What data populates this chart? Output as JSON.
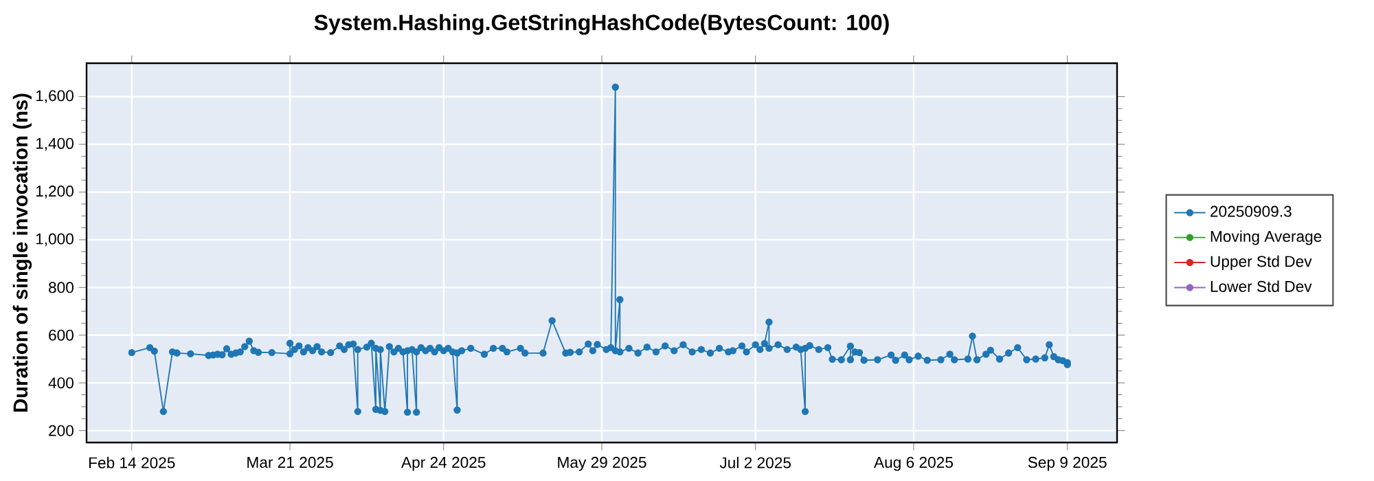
{
  "chart_data": {
    "type": "line",
    "title": "System.Hashing.GetStringHashCode(BytesCount: 100)",
    "ylabel": "Duration of single invocation (ns)",
    "xlim": [
      "2025-02-04",
      "2025-09-20"
    ],
    "xticks": [
      {
        "value": "2025-02-14",
        "label": "Feb 14 2025"
      },
      {
        "value": "2025-03-21",
        "label": "Mar 21 2025"
      },
      {
        "value": "2025-04-24",
        "label": "Apr 24 2025"
      },
      {
        "value": "2025-05-29",
        "label": "May 29 2025"
      },
      {
        "value": "2025-07-02",
        "label": "Jul 2 2025"
      },
      {
        "value": "2025-08-06",
        "label": "Aug 6 2025"
      },
      {
        "value": "2025-09-09",
        "label": "Sep 9 2025"
      }
    ],
    "ylim": [
      150,
      1740
    ],
    "yticks": [
      200,
      400,
      600,
      800,
      {
        "value": 1000,
        "label": "1,000"
      },
      {
        "value": 1200,
        "label": "1,200"
      },
      {
        "value": 1400,
        "label": "1,400"
      },
      {
        "value": 1600,
        "label": "1,600"
      }
    ],
    "grid": true,
    "legend": "right",
    "marker": "circle",
    "line_style": "solid",
    "series": [
      {
        "name": "20250909.3",
        "color": "#1f77b4",
        "x": [
          "2025-02-14",
          "2025-02-18",
          "2025-02-19",
          "2025-02-21",
          "2025-02-23",
          "2025-02-24",
          "2025-02-27",
          "2025-03-03",
          "2025-03-04",
          "2025-03-05",
          "2025-03-06",
          "2025-03-07",
          "2025-03-08",
          "2025-03-09",
          "2025-03-10",
          "2025-03-11",
          "2025-03-12",
          "2025-03-13",
          "2025-03-14",
          "2025-03-17",
          "2025-03-21",
          "2025-03-21",
          "2025-03-22",
          "2025-03-23",
          "2025-03-24",
          "2025-03-25",
          "2025-03-26",
          "2025-03-27",
          "2025-03-28",
          "2025-03-30",
          "2025-04-01",
          "2025-04-02",
          "2025-04-03",
          "2025-04-04",
          "2025-04-05",
          "2025-04-05",
          "2025-04-07",
          "2025-04-08",
          "2025-04-09",
          "2025-04-09",
          "2025-04-10",
          "2025-04-10",
          "2025-04-11",
          "2025-04-12",
          "2025-04-13",
          "2025-04-14",
          "2025-04-15",
          "2025-04-16",
          "2025-04-16",
          "2025-04-17",
          "2025-04-18",
          "2025-04-18",
          "2025-04-19",
          "2025-04-20",
          "2025-04-21",
          "2025-04-22",
          "2025-04-23",
          "2025-04-24",
          "2025-04-25",
          "2025-04-26",
          "2025-04-27",
          "2025-04-27",
          "2025-04-28",
          "2025-04-30",
          "2025-05-03",
          "2025-05-05",
          "2025-05-07",
          "2025-05-08",
          "2025-05-11",
          "2025-05-12",
          "2025-05-16",
          "2025-05-18",
          "2025-05-21",
          "2025-05-22",
          "2025-05-24",
          "2025-05-26",
          "2025-05-27",
          "2025-05-28",
          "2025-05-30",
          "2025-05-31",
          "2025-06-01",
          "2025-06-01",
          "2025-06-02",
          "2025-06-02",
          "2025-06-04",
          "2025-06-06",
          "2025-06-08",
          "2025-06-10",
          "2025-06-12",
          "2025-06-14",
          "2025-06-16",
          "2025-06-18",
          "2025-06-20",
          "2025-06-22",
          "2025-06-24",
          "2025-06-26",
          "2025-06-27",
          "2025-06-29",
          "2025-06-30",
          "2025-07-02",
          "2025-07-03",
          "2025-07-04",
          "2025-07-05",
          "2025-07-05",
          "2025-07-07",
          "2025-07-09",
          "2025-07-11",
          "2025-07-12",
          "2025-07-13",
          "2025-07-13",
          "2025-07-14",
          "2025-07-16",
          "2025-07-18",
          "2025-07-19",
          "2025-07-21",
          "2025-07-23",
          "2025-07-23",
          "2025-07-24",
          "2025-07-25",
          "2025-07-26",
          "2025-07-29",
          "2025-08-01",
          "2025-08-02",
          "2025-08-04",
          "2025-08-05",
          "2025-08-07",
          "2025-08-09",
          "2025-08-12",
          "2025-08-14",
          "2025-08-15",
          "2025-08-18",
          "2025-08-19",
          "2025-08-20",
          "2025-08-22",
          "2025-08-23",
          "2025-08-25",
          "2025-08-27",
          "2025-08-29",
          "2025-08-31",
          "2025-09-02",
          "2025-09-04",
          "2025-09-05",
          "2025-09-06",
          "2025-09-07",
          "2025-09-08",
          "2025-09-09",
          "2025-09-09"
        ],
        "values": [
          527,
          548,
          533,
          280,
          530,
          525,
          522,
          515,
          517,
          520,
          518,
          543,
          520,
          525,
          530,
          552,
          575,
          535,
          528,
          527,
          522,
          566,
          540,
          555,
          530,
          548,
          535,
          552,
          530,
          527,
          555,
          540,
          560,
          563,
          280,
          540,
          550,
          566,
          289,
          545,
          285,
          540,
          280,
          552,
          530,
          545,
          530,
          277,
          535,
          540,
          277,
          530,
          548,
          535,
          545,
          530,
          548,
          535,
          545,
          530,
          286,
          525,
          535,
          545,
          520,
          545,
          545,
          530,
          545,
          525,
          525,
          661,
          525,
          528,
          530,
          563,
          535,
          561,
          540,
          548,
          1640,
          535,
          749,
          530,
          545,
          525,
          550,
          530,
          555,
          535,
          560,
          530,
          540,
          525,
          545,
          530,
          535,
          555,
          530,
          560,
          540,
          565,
          655,
          545,
          560,
          540,
          550,
          540,
          280,
          545,
          556,
          540,
          548,
          499,
          497,
          554,
          497,
          530,
          527,
          495,
          497,
          517,
          495,
          517,
          497,
          512,
          495,
          497,
          520,
          497,
          500,
          596,
          497,
          520,
          537,
          500,
          525,
          548,
          497,
          500,
          505,
          560,
          510,
          497,
          493,
          477,
          485
        ]
      },
      {
        "name": "Moving Average",
        "color": "#2ca02c"
      },
      {
        "name": "Upper Std Dev",
        "color": "#d62728"
      },
      {
        "name": "Lower Std Dev",
        "color": "#9467bd"
      }
    ]
  }
}
